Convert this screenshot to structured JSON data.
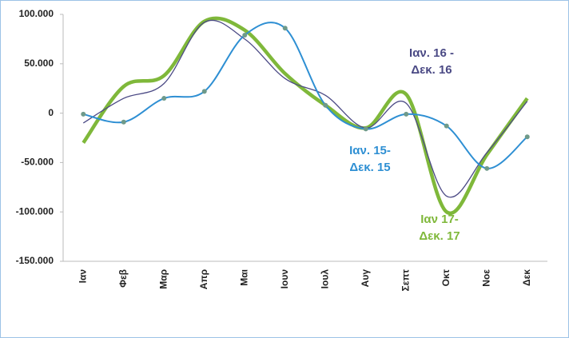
{
  "chart_data": {
    "type": "line",
    "categories": [
      "Ιαν",
      "Φεβ",
      "Μαρ",
      "Απρ",
      "Μαι",
      "Ιουν",
      "Ιουλ",
      "Αυγ",
      "Σεπτ",
      "Οκτ",
      "Νοε",
      "Δεκ"
    ],
    "series": [
      {
        "name": "Ιαν. 15- Δεκ. 15",
        "color": "#2e8fd3",
        "markers": true,
        "values": [
          -1000,
          -9000,
          15000,
          22000,
          79000,
          86000,
          8000,
          -16000,
          -1000,
          -13000,
          -56000,
          -24000
        ]
      },
      {
        "name": "Ιαν. 16 - Δεκ. 16",
        "color": "#4b4a85",
        "markers": false,
        "values": [
          -10000,
          15000,
          30000,
          92000,
          75000,
          35000,
          18000,
          -15000,
          10000,
          -84000,
          -40000,
          12000
        ]
      },
      {
        "name": "Ιαν 17- Δεκ. 17",
        "color": "#7fb83a",
        "markers": false,
        "values": [
          -30000,
          27000,
          38000,
          93000,
          84000,
          40000,
          8000,
          -15000,
          19000,
          -100000,
          -42000,
          15000
        ]
      }
    ],
    "ylim": [
      -150000,
      100000
    ],
    "yticks": [
      {
        "value": -150000,
        "label": "-150.000"
      },
      {
        "value": -100000,
        "label": "-100.000"
      },
      {
        "value": -50000,
        "label": "-50.000"
      },
      {
        "value": 0,
        "label": "0"
      },
      {
        "value": 50000,
        "label": "50.000"
      },
      {
        "value": 100000,
        "label": "100.000"
      }
    ],
    "smooth": true
  }
}
